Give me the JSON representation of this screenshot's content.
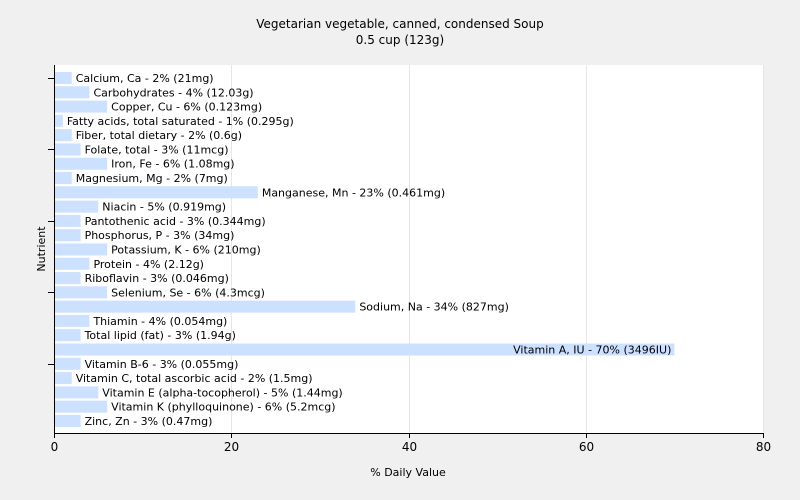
{
  "chart_data": {
    "type": "bar",
    "orientation": "horizontal",
    "title": "Vegetarian vegetable, canned, condensed Soup",
    "subtitle": "0.5 cup (123g)",
    "xlabel": "% Daily Value",
    "ylabel": "Nutrient",
    "xlim": [
      0,
      80
    ],
    "xticks": [
      0,
      20,
      40,
      60,
      80
    ],
    "grid": true,
    "legend": "none",
    "colors": {
      "bar": "#cce0ff",
      "background": "#ffffff",
      "page": "#f0f0f0",
      "grid": "#e6e6e6"
    },
    "categories": [
      "Calcium, Ca",
      "Carbohydrates",
      "Copper, Cu",
      "Fatty acids, total saturated",
      "Fiber, total dietary",
      "Folate, total",
      "Iron, Fe",
      "Magnesium, Mg",
      "Manganese, Mn",
      "Niacin",
      "Pantothenic acid",
      "Phosphorus, P",
      "Potassium, K",
      "Protein",
      "Riboflavin",
      "Selenium, Se",
      "Sodium, Na",
      "Thiamin",
      "Total lipid (fat)",
      "Vitamin A, IU",
      "Vitamin B-6",
      "Vitamin C, total ascorbic acid",
      "Vitamin E (alpha-tocopherol)",
      "Vitamin K (phylloquinone)",
      "Zinc, Zn"
    ],
    "values": [
      2,
      4,
      6,
      1,
      2,
      3,
      6,
      2,
      23,
      5,
      3,
      3,
      6,
      4,
      3,
      6,
      34,
      4,
      3,
      70,
      3,
      2,
      5,
      6,
      3
    ],
    "labels": [
      "Calcium, Ca - 2% (21mg)",
      "Carbohydrates - 4% (12.03g)",
      "Copper, Cu - 6% (0.123mg)",
      "Fatty acids, total saturated - 1% (0.295g)",
      "Fiber, total dietary - 2% (0.6g)",
      "Folate, total - 3% (11mcg)",
      "Iron, Fe - 6% (1.08mg)",
      "Magnesium, Mg - 2% (7mg)",
      "Manganese, Mn - 23% (0.461mg)",
      "Niacin - 5% (0.919mg)",
      "Pantothenic acid - 3% (0.344mg)",
      "Phosphorus, P - 3% (34mg)",
      "Potassium, K - 6% (210mg)",
      "Protein - 4% (2.12g)",
      "Riboflavin - 3% (0.046mg)",
      "Selenium, Se - 6% (4.3mcg)",
      "Sodium, Na - 34% (827mg)",
      "Thiamin - 4% (0.054mg)",
      "Total lipid (fat) - 3% (1.94g)",
      "Vitamin A, IU - 70% (3496IU)",
      "Vitamin B-6 - 3% (0.055mg)",
      "Vitamin C, total ascorbic acid - 2% (1.5mg)",
      "Vitamin E (alpha-tocopherol) - 5% (1.44mg)",
      "Vitamin K (phylloquinone) - 6% (5.2mcg)",
      "Zinc, Zn - 3% (0.47mg)"
    ]
  }
}
